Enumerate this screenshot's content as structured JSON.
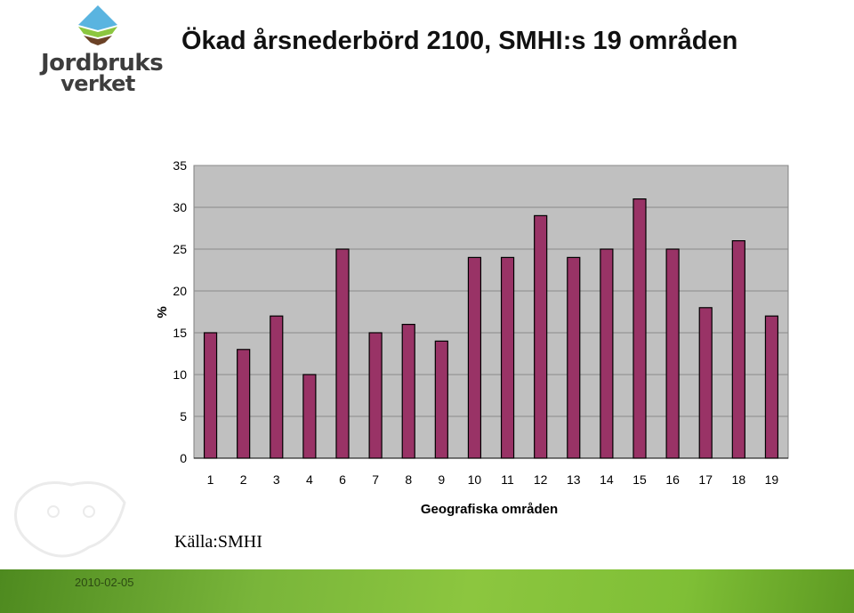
{
  "logo": {
    "line1": "Jordbruks",
    "line2": "verket"
  },
  "page_title": "Ökad årsnederbörd 2100, SMHI:s 19 områden",
  "source_note": "Källa:SMHI",
  "footer_date": "2010-02-05",
  "colors": {
    "bar": "#993366",
    "plot_bg": "#c0c0c0",
    "footer": "#8cc63f"
  },
  "chart_data": {
    "type": "bar",
    "title": "",
    "xlabel": "Geografiska områden",
    "ylabel": "%",
    "categories": [
      "1",
      "2",
      "3",
      "4",
      "6",
      "7",
      "8",
      "9",
      "10",
      "11",
      "12",
      "13",
      "14",
      "15",
      "16",
      "17",
      "18",
      "19"
    ],
    "values": [
      15,
      13,
      17,
      10,
      25,
      15,
      16,
      14,
      24,
      24,
      29,
      24,
      25,
      31,
      25,
      18,
      26,
      17
    ],
    "ylim": [
      0,
      35
    ],
    "yticks": [
      0,
      5,
      10,
      15,
      20,
      25,
      30,
      35
    ],
    "grid": true,
    "legend": "none"
  }
}
